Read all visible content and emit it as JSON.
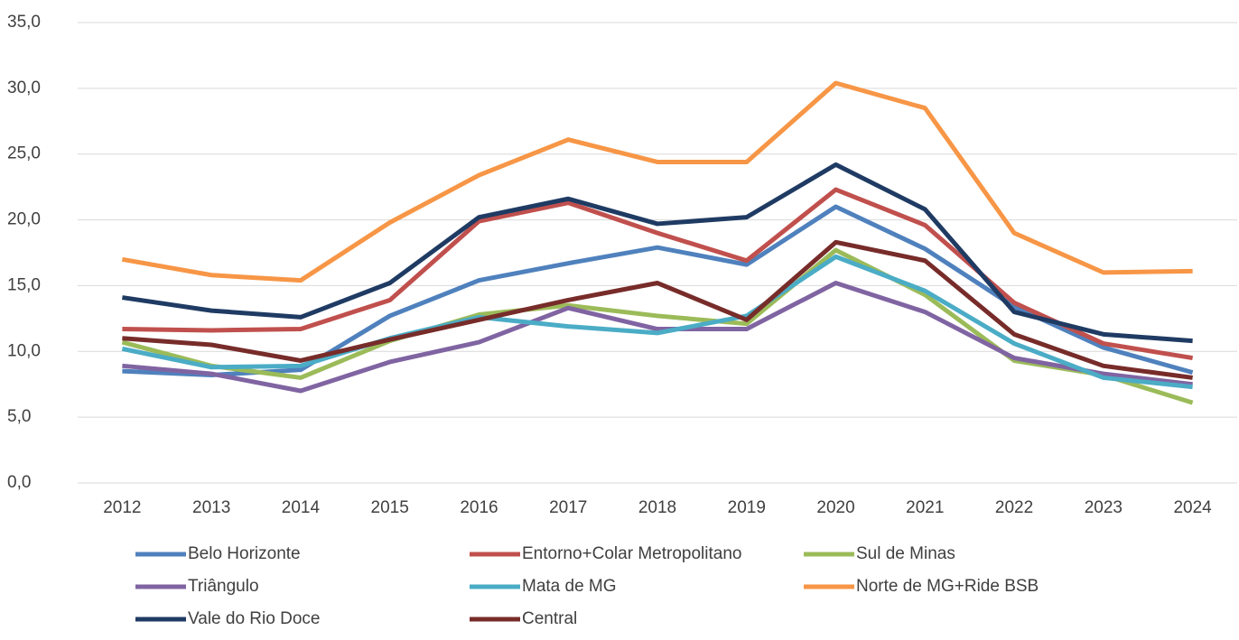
{
  "chart_data": {
    "type": "line",
    "categories": [
      "2012",
      "2013",
      "2014",
      "2015",
      "2016",
      "2017",
      "2018",
      "2019",
      "2020",
      "2021",
      "2022",
      "2023",
      "2024"
    ],
    "series": [
      {
        "name": "Belo Horizonte",
        "color": "#4f81bd",
        "values": [
          8.5,
          8.2,
          8.6,
          12.7,
          15.4,
          16.7,
          17.9,
          16.6,
          21.0,
          17.8,
          13.4,
          10.3,
          8.4
        ]
      },
      {
        "name": "Entorno+Colar Metropolitano",
        "color": "#c0504d",
        "values": [
          11.7,
          11.6,
          11.7,
          13.9,
          19.9,
          21.3,
          19.0,
          16.9,
          22.3,
          19.6,
          13.7,
          10.6,
          9.5
        ]
      },
      {
        "name": "Sul de Minas",
        "color": "#9bbb59",
        "values": [
          10.7,
          8.9,
          8.0,
          10.8,
          12.8,
          13.5,
          12.7,
          12.1,
          17.7,
          14.3,
          9.3,
          8.2,
          6.1
        ]
      },
      {
        "name": "Triângulo",
        "color": "#8064a2",
        "values": [
          8.9,
          8.3,
          7.0,
          9.2,
          10.7,
          13.3,
          11.7,
          11.7,
          15.2,
          13.0,
          9.5,
          8.3,
          7.5
        ]
      },
      {
        "name": "Mata de MG",
        "color": "#4bacc6",
        "values": [
          10.2,
          8.8,
          8.9,
          11.0,
          12.6,
          11.9,
          11.4,
          12.7,
          17.2,
          14.6,
          10.6,
          8.0,
          7.3
        ]
      },
      {
        "name": "Norte de MG+Ride BSB",
        "color": "#f79646",
        "values": [
          17.0,
          15.8,
          15.4,
          19.8,
          23.4,
          26.1,
          24.4,
          24.4,
          30.4,
          28.5,
          19.0,
          16.0,
          16.1
        ]
      },
      {
        "name": "Vale do Rio Doce",
        "color": "#1f3b63",
        "values": [
          14.1,
          13.1,
          12.6,
          15.2,
          20.2,
          21.6,
          19.7,
          20.2,
          24.2,
          20.8,
          13.0,
          11.3,
          10.8
        ]
      },
      {
        "name": "Central",
        "color": "#772c2a",
        "values": [
          11.0,
          10.5,
          9.3,
          10.9,
          12.4,
          13.9,
          15.2,
          12.4,
          18.3,
          16.9,
          11.3,
          8.9,
          8.0
        ]
      }
    ],
    "ylim": [
      0,
      35
    ],
    "yticks": [
      {
        "value": 0,
        "label": "0,0"
      },
      {
        "value": 5,
        "label": "5,0"
      },
      {
        "value": 10,
        "label": "10,0"
      },
      {
        "value": 15,
        "label": "15,0"
      },
      {
        "value": 20,
        "label": "20,0"
      },
      {
        "value": 25,
        "label": "25,0"
      },
      {
        "value": 30,
        "label": "30,0"
      },
      {
        "value": 35,
        "label": "35,0"
      }
    ],
    "grid": true,
    "legend": "bottom"
  }
}
